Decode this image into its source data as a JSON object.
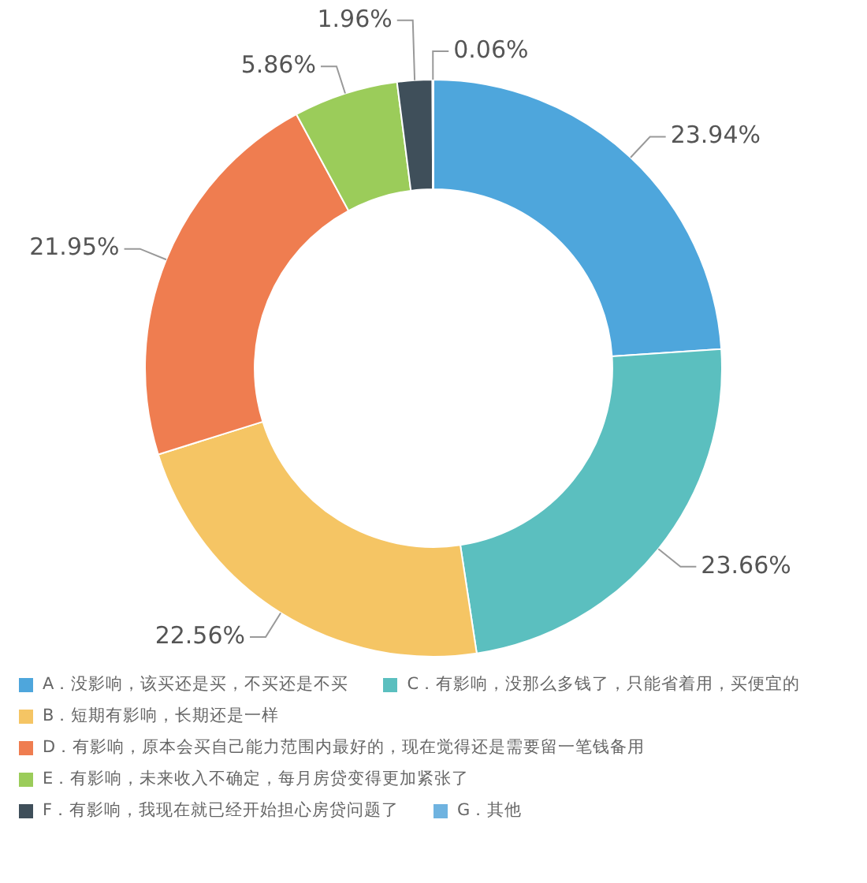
{
  "chart_data": {
    "type": "donut",
    "categories": [
      "A．没影响，该买还是买，不买还是不买",
      "C．有影响，没那么多钱了，只能省着用，买便宜的",
      "B．短期有影响，长期还是一样",
      "D．有影响，原本会买自己能力范围内最好的，现在觉得还是需要留一笔钱备用",
      "E．有影响，未来收入不确定，每月房贷变得更加紧张了",
      "F．有影响，我现在就已经开始担心房贷问题了",
      "G．其他"
    ],
    "values": [
      23.94,
      23.66,
      22.56,
      21.95,
      5.86,
      1.96,
      0.06
    ],
    "value_labels": [
      "23.94%",
      "23.66%",
      "22.56%",
      "21.95%",
      "5.86%",
      "1.96%",
      "0.06%"
    ],
    "colors": [
      "#4ea6dc",
      "#5bbfbf",
      "#f5c564",
      "#ef7d50",
      "#9bcc5a",
      "#3f4f5a",
      "#6fb3e0"
    ],
    "legend": "bottom"
  }
}
